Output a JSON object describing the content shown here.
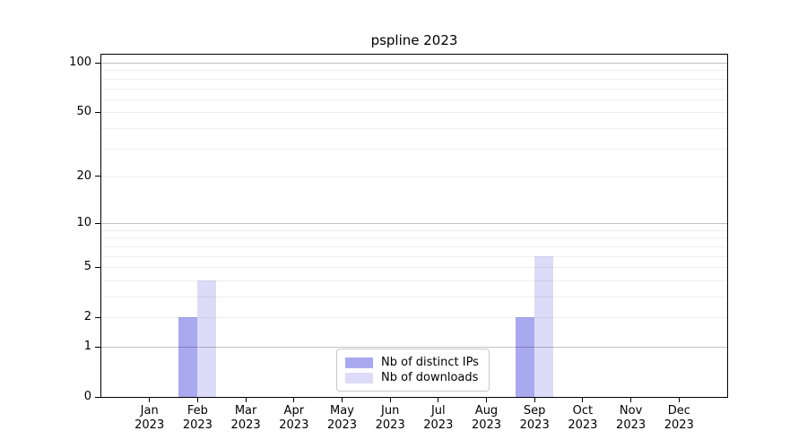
{
  "title": "pspline 2023",
  "legend": {
    "items": [
      {
        "label": "Nb of distinct IPs",
        "color": "#a9a9f0"
      },
      {
        "label": "Nb of downloads",
        "color": "#dcdcf8"
      }
    ]
  },
  "chart_data": {
    "type": "bar",
    "title": "pspline 2023",
    "categories": [
      "Jan 2023",
      "Feb 2023",
      "Mar 2023",
      "Apr 2023",
      "May 2023",
      "Jun 2023",
      "Jul 2023",
      "Aug 2023",
      "Sep 2023",
      "Oct 2023",
      "Nov 2023",
      "Dec 2023"
    ],
    "series": [
      {
        "name": "Nb of distinct IPs",
        "color": "#a9a9f0",
        "values": [
          0,
          2,
          0,
          0,
          0,
          0,
          0,
          0,
          2,
          0,
          0,
          0
        ]
      },
      {
        "name": "Nb of downloads",
        "color": "#dcdcf8",
        "values": [
          0,
          4,
          0,
          0,
          0,
          0,
          0,
          0,
          6,
          0,
          0,
          0
        ]
      }
    ],
    "xlabel": "",
    "ylabel": "",
    "y_scale": "log1p",
    "ylim": [
      0,
      112
    ],
    "y_ticks": [
      0,
      1,
      2,
      5,
      10,
      20,
      50,
      100
    ],
    "y_major_gridlines": [
      1,
      10,
      100
    ],
    "y_minor_gridlines": [
      2,
      3,
      4,
      5,
      6,
      7,
      8,
      9,
      20,
      30,
      40,
      50,
      60,
      70,
      80,
      90
    ],
    "grid": true,
    "grid_over_bars": true,
    "legend_position": "lower center"
  },
  "colors": {
    "background": "#ffffff",
    "axis": "#000000",
    "grid_major": "rgba(0,0,0,0.24)",
    "grid_minor": "rgba(0,0,0,0.065)"
  }
}
